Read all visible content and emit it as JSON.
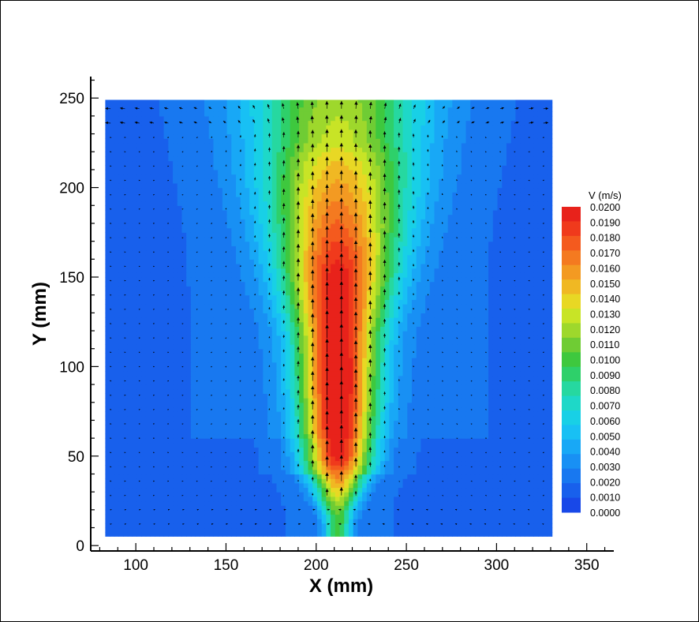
{
  "chart_data": {
    "type": "heatmap",
    "title": "",
    "xlabel": "X (mm)",
    "ylabel": "Y (mm)",
    "xlim": [
      75,
      365
    ],
    "ylim": [
      -3,
      262
    ],
    "domain_x": [
      83,
      331
    ],
    "domain_y": [
      5,
      249
    ],
    "x_ticks": [
      100,
      150,
      200,
      250,
      300,
      350
    ],
    "y_ticks": [
      0,
      50,
      100,
      150,
      200,
      250
    ],
    "colorbar": {
      "title": "V (m/s)",
      "levels": [
        "0.0200",
        "0.0190",
        "0.0180",
        "0.0170",
        "0.0160",
        "0.0150",
        "0.0140",
        "0.0130",
        "0.0120",
        "0.0110",
        "0.0100",
        "0.0090",
        "0.0080",
        "0.0070",
        "0.0060",
        "0.0050",
        "0.0040",
        "0.0030",
        "0.0020",
        "0.0010",
        "0.0000"
      ],
      "colors": [
        "#e8221b",
        "#f03a1c",
        "#f45a1e",
        "#f47a20",
        "#f39a22",
        "#f0b823",
        "#e8d824",
        "#c8e426",
        "#9ed82c",
        "#6fcc34",
        "#3ec83e",
        "#2ed06a",
        "#26d8a0",
        "#1ed8c8",
        "#18d0e6",
        "#18c0f4",
        "#18a8f6",
        "#1890f4",
        "#1878f0",
        "#1860ec",
        "#1848e8"
      ],
      "range": [
        0,
        0.02
      ]
    },
    "jet_field": {
      "description_levels": "velocity magnitude contours with vector overlay",
      "peak_value": 0.0195,
      "peak_location": [
        212,
        100
      ],
      "jet_centerline_x": 212
    }
  }
}
